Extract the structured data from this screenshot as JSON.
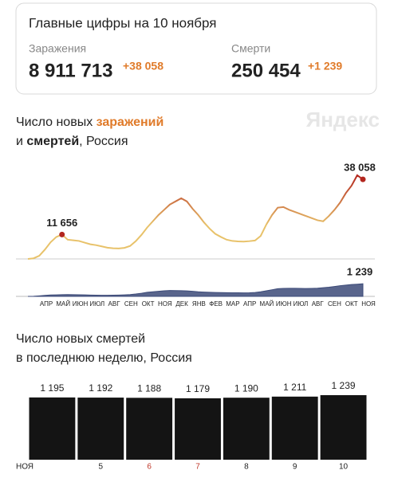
{
  "header": {
    "title": "Главные цифры на 10 ноября",
    "stats": [
      {
        "label": "Заражения",
        "value": "8 911 713",
        "delta": "+38 058"
      },
      {
        "label": "Смерти",
        "value": "250 454",
        "delta": "+1 239"
      }
    ]
  },
  "watermark": "Яндекс",
  "chart_data": [
    {
      "type": "line",
      "title_parts": [
        "Число новых ",
        "заражений",
        "и ",
        "смертей",
        ", Россия"
      ],
      "x_labels": [
        "АПР",
        "МАЙ",
        "ИЮН",
        "ИЮЛ",
        "АВГ",
        "СЕН",
        "ОКТ",
        "НОЯ",
        "ДЕК",
        "ЯНВ",
        "ФЕВ",
        "МАР",
        "АПР",
        "МАЙ",
        "ИЮН",
        "ИЮЛ",
        "АВГ",
        "СЕН",
        "ОКТ",
        "НОЯ"
      ],
      "series": [
        {
          "name": "заражений",
          "color": "#e8c26a",
          "color_high": "#b3261e",
          "ylim": [
            0,
            40000
          ],
          "values": [
            0,
            300,
            1500,
            4500,
            8000,
            10500,
            11656,
            9200,
            8900,
            8600,
            7800,
            7000,
            6600,
            6000,
            5400,
            5100,
            5000,
            5300,
            6200,
            8500,
            11500,
            15000,
            18000,
            21000,
            23500,
            26000,
            27500,
            29000,
            27500,
            24000,
            21000,
            17500,
            14500,
            12000,
            10500,
            9200,
            8600,
            8400,
            8300,
            8500,
            8800,
            11000,
            16500,
            21000,
            24500,
            24800,
            23500,
            22500,
            21500,
            20500,
            19500,
            18500,
            18000,
            20500,
            23500,
            27000,
            31500,
            35000,
            40000,
            38058
          ],
          "value_labels": [
            null,
            null,
            null,
            null,
            null,
            null,
            "11 656",
            null,
            null,
            null,
            null,
            null,
            null,
            null,
            null,
            null,
            null,
            null,
            null,
            null,
            null,
            null,
            null,
            null,
            null,
            null,
            null,
            null,
            null,
            null,
            null,
            null,
            null,
            null,
            null,
            null,
            null,
            null,
            null,
            null,
            null,
            null,
            null,
            null,
            null,
            null,
            null,
            null,
            null,
            null,
            null,
            null,
            null,
            null,
            null,
            null,
            null,
            null,
            null,
            "38 058"
          ]
        },
        {
          "name": "смертей",
          "color": "#3c4a78",
          "ylim": [
            0,
            2500
          ],
          "values": [
            0,
            10,
            50,
            100,
            140,
            150,
            170,
            180,
            170,
            160,
            150,
            130,
            120,
            110,
            110,
            120,
            130,
            150,
            180,
            230,
            300,
            400,
            450,
            500,
            550,
            580,
            570,
            560,
            540,
            500,
            450,
            420,
            400,
            380,
            370,
            360,
            350,
            350,
            340,
            350,
            380,
            450,
            550,
            650,
            750,
            780,
            790,
            790,
            780,
            770,
            780,
            800,
            850,
            900,
            970,
            1050,
            1100,
            1160,
            1195,
            1239
          ],
          "value_labels": [
            null,
            null,
            null,
            null,
            null,
            null,
            null,
            null,
            null,
            null,
            null,
            null,
            null,
            null,
            null,
            null,
            null,
            null,
            null,
            null,
            null,
            null,
            null,
            null,
            null,
            null,
            null,
            null,
            null,
            null,
            null,
            null,
            null,
            null,
            null,
            null,
            null,
            null,
            null,
            null,
            null,
            null,
            null,
            null,
            null,
            null,
            null,
            null,
            null,
            null,
            null,
            null,
            null,
            null,
            null,
            null,
            null,
            null,
            null,
            "1 239"
          ]
        }
      ]
    },
    {
      "type": "bar",
      "title_parts": [
        "Число новых смертей",
        "в последнюю неделю, Россия"
      ],
      "categories": [
        "НОЯ",
        "5",
        "6",
        "7",
        "8",
        "9",
        "10"
      ],
      "category_colors": [
        "#222222",
        "#222222",
        "#c0392b",
        "#c0392b",
        "#222222",
        "#222222",
        "#222222"
      ],
      "values": [
        1195,
        1192,
        1188,
        1179,
        1190,
        1211,
        1239
      ],
      "value_labels": [
        "1 195",
        "1 192",
        "1 188",
        "1 179",
        "1 190",
        "1 211",
        "1 239"
      ],
      "color": "#141414",
      "ylim": [
        0,
        1300
      ]
    }
  ]
}
